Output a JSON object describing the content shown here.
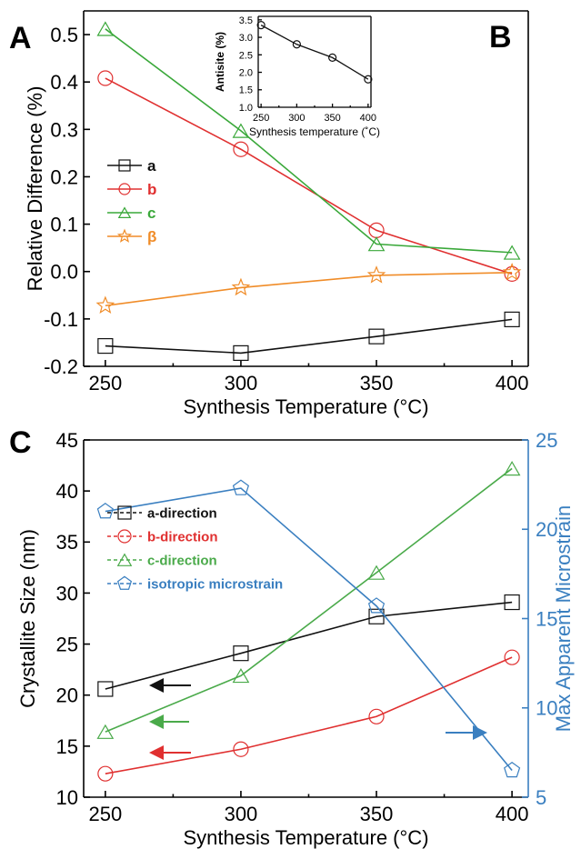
{
  "panel_labels": [
    "A",
    "B",
    "C"
  ],
  "chart_data": [
    {
      "id": "A",
      "type": "line",
      "xlabel": "Synthesis Temperature (°C)",
      "ylabel": "Relative Difference (%)",
      "x": [
        250,
        300,
        350,
        400
      ],
      "xlim": [
        242,
        406
      ],
      "ylim": [
        -0.2,
        0.55
      ],
      "xticks": [
        "250",
        "300",
        "350",
        "400"
      ],
      "yticks": [
        "-0.2",
        "-0.1",
        "0.0",
        "0.1",
        "0.2",
        "0.3",
        "0.4",
        "0.5"
      ],
      "legend_position": "middle-left",
      "series": [
        {
          "name": "a",
          "color": "#111111",
          "marker": "square",
          "values": [
            -0.157,
            -0.172,
            -0.137,
            -0.101
          ]
        },
        {
          "name": "b",
          "color": "#e03030",
          "marker": "circle",
          "values": [
            0.408,
            0.258,
            0.087,
            -0.005
          ]
        },
        {
          "name": "c",
          "color": "#3aa83a",
          "marker": "triangle",
          "values": [
            0.512,
            0.297,
            0.058,
            0.04
          ]
        },
        {
          "name": "β",
          "color": "#f08c28",
          "marker": "star",
          "values": [
            -0.072,
            -0.034,
            -0.008,
            -0.002
          ]
        }
      ]
    },
    {
      "id": "B",
      "type": "line",
      "inset": true,
      "xlabel": "Synthesis temperature (˚C)",
      "ylabel": "Antisite (%)",
      "x": [
        250,
        300,
        350,
        400
      ],
      "xlim": [
        246,
        404
      ],
      "ylim": [
        1.0,
        3.6
      ],
      "xticks": [
        "250",
        "300",
        "350",
        "400"
      ],
      "yticks": [
        "1.0",
        "1.5",
        "2.0",
        "2.5",
        "3.0",
        "3.5"
      ],
      "series": [
        {
          "color": "#111111",
          "marker": "circle",
          "values": [
            3.35,
            2.8,
            2.42,
            1.8
          ]
        }
      ]
    },
    {
      "id": "C",
      "type": "line",
      "xlabel": "Synthesis Temperature (°C)",
      "ylabel": "Crystallite Size (nm)",
      "y2label": "Max Apparent Microstrain",
      "x": [
        250,
        300,
        350,
        400
      ],
      "xlim": [
        242,
        406
      ],
      "ylim": [
        10,
        45
      ],
      "y2lim": [
        5,
        25
      ],
      "xticks": [
        "250",
        "300",
        "350",
        "400"
      ],
      "yticks": [
        "10",
        "15",
        "20",
        "25",
        "30",
        "35",
        "40",
        "45"
      ],
      "y2ticks": [
        "5",
        "10",
        "15",
        "20",
        "25"
      ],
      "y2color": "#3a7fc0",
      "legend_position": "upper-left",
      "series": [
        {
          "name": "a-direction",
          "axis": "left",
          "color": "#111111",
          "marker": "square",
          "values": [
            20.6,
            24.1,
            27.7,
            29.1
          ]
        },
        {
          "name": "b-direction",
          "axis": "left",
          "color": "#e03030",
          "marker": "circle",
          "values": [
            12.3,
            14.7,
            17.9,
            23.7
          ]
        },
        {
          "name": "c-direction",
          "axis": "left",
          "color": "#4aaa4a",
          "marker": "triangle",
          "values": [
            16.4,
            21.9,
            32.0,
            42.2
          ]
        },
        {
          "name": "isotropic microstrain",
          "axis": "right",
          "color": "#3a7fc0",
          "marker": "pentagon",
          "values": [
            21.0,
            22.3,
            15.7,
            6.5
          ]
        }
      ]
    }
  ]
}
